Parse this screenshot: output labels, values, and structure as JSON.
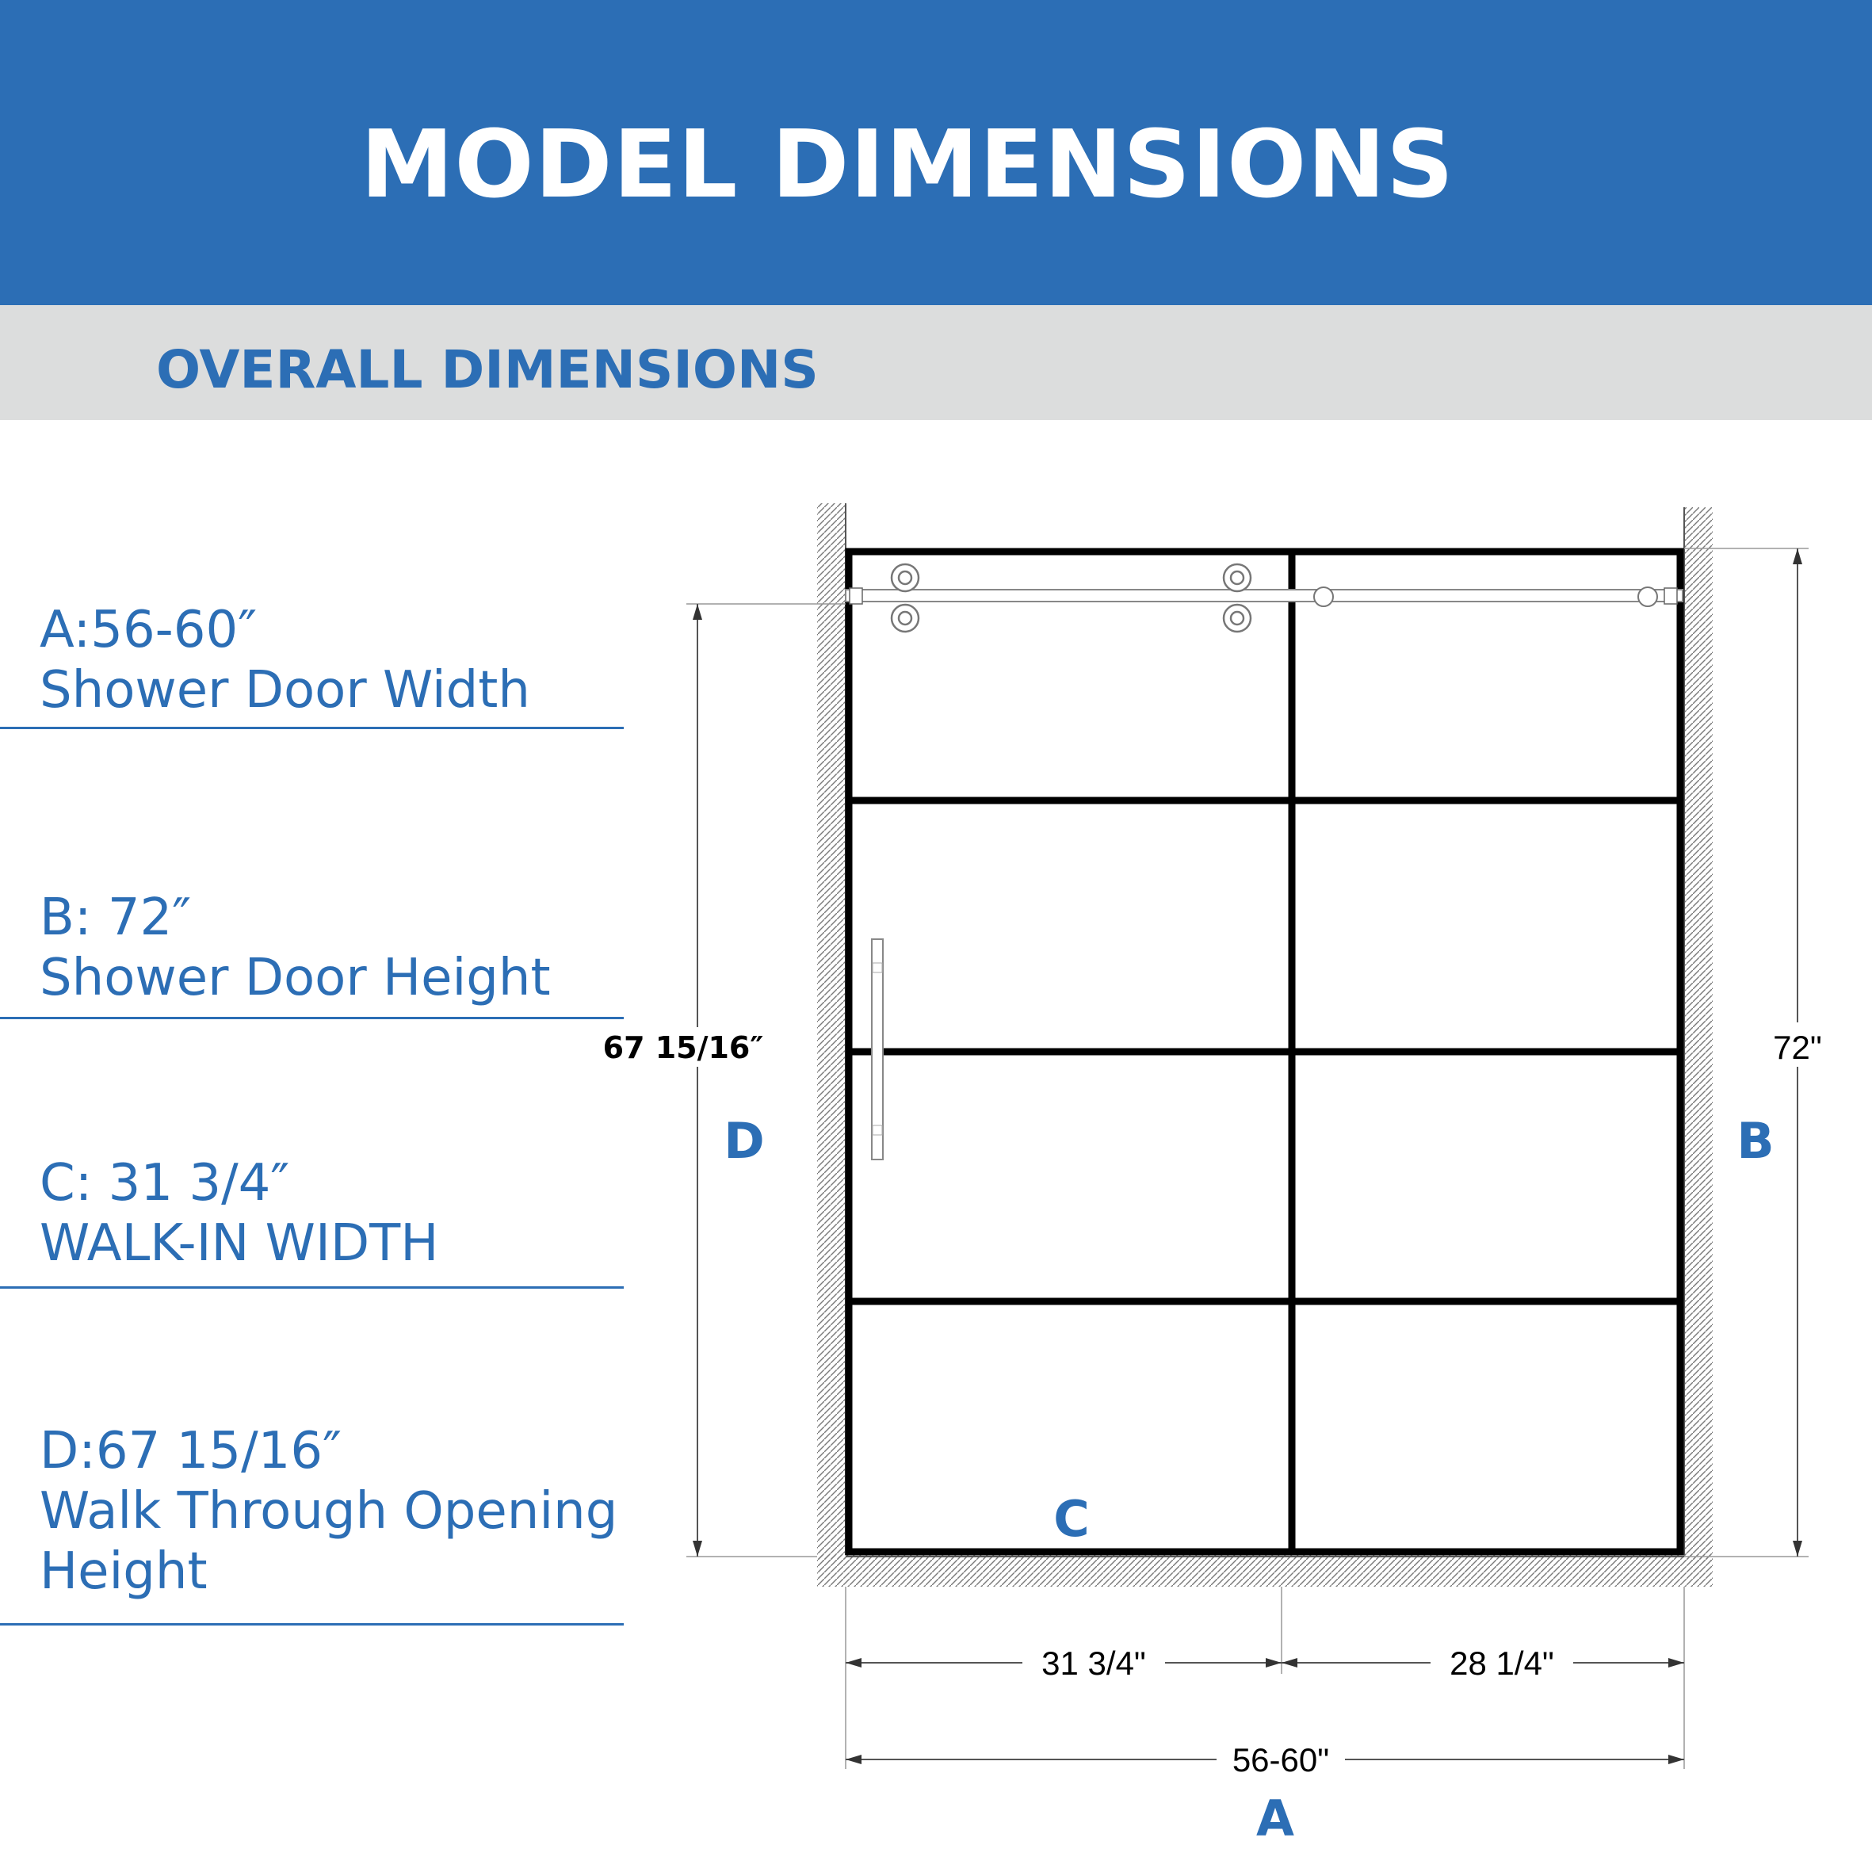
{
  "header": {
    "title": "MODEL DIMENSIONS"
  },
  "subheader": {
    "title": "OVERALL DIMENSIONS"
  },
  "specs": [
    {
      "code": "A:",
      "value": "56-60″",
      "desc": [
        "Shower Door Width"
      ]
    },
    {
      "code": "B:",
      "value": "72″",
      "desc": [
        "Shower Door Height"
      ]
    },
    {
      "code": "C:",
      "value": "31 3/4″",
      "desc": [
        "WALK-IN WIDTH"
      ]
    },
    {
      "code": "D:",
      "value": "67 15/16″",
      "desc": [
        "Walk Through Opening",
        "Height"
      ]
    }
  ],
  "diagram": {
    "height_right": "72\"",
    "height_left": "67 15/16″",
    "width_walkin": "31 3/4\"",
    "width_fixed": "28 1/4\"",
    "width_total": "56-60\"",
    "letter_a": "A",
    "letter_b": "B",
    "letter_c": "C",
    "letter_d": "D",
    "frame_color": "#000000",
    "accent_color": "#2c6eb5"
  }
}
